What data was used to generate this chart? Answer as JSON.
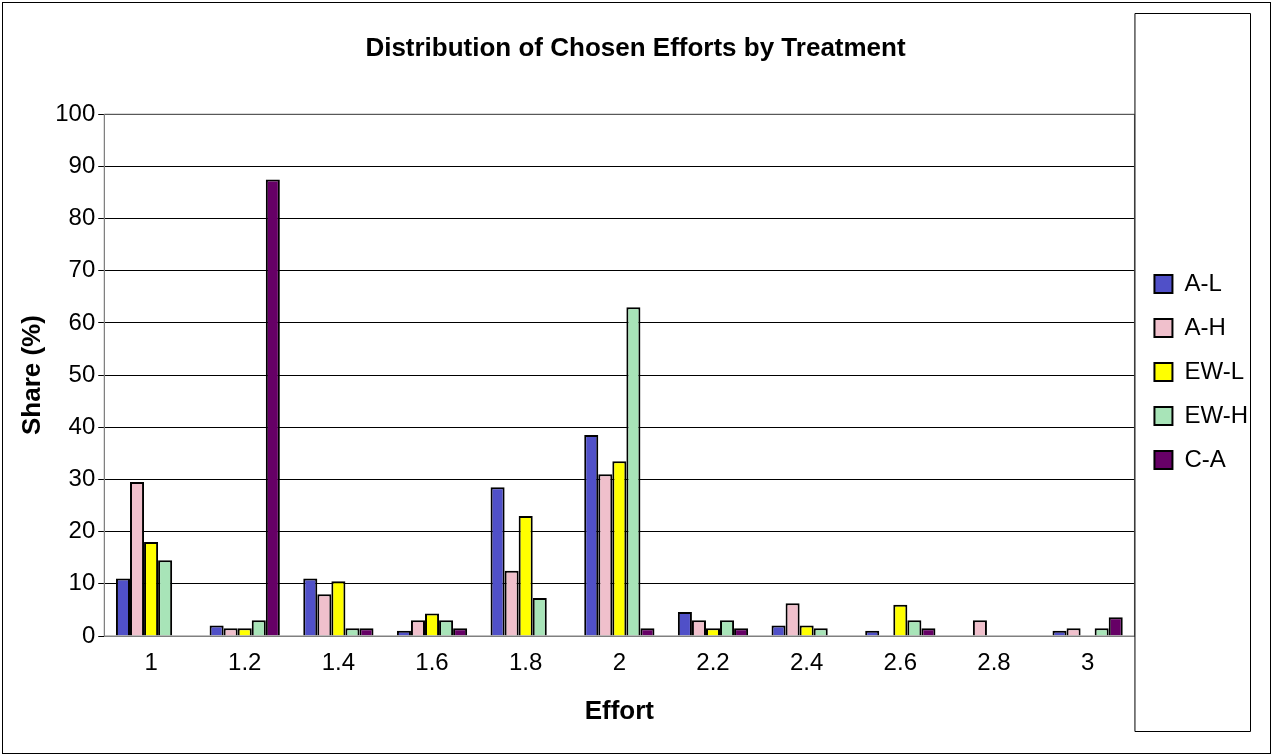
{
  "chart_data": {
    "type": "bar",
    "title": "Distribution of Chosen Efforts by Treatment",
    "xlabel": "Effort",
    "ylabel": "Share (%)",
    "categories": [
      "1",
      "1.2",
      "1.4",
      "1.6",
      "1.8",
      "2",
      "2.2",
      "2.4",
      "2.6",
      "2.8",
      "3"
    ],
    "series": [
      {
        "name": "A-L",
        "color": "#5050c8",
        "values": [
          11,
          2,
          11,
          1,
          28.5,
          38.5,
          4.6,
          2,
          1,
          0,
          1
        ]
      },
      {
        "name": "A-H",
        "color": "#f0c0cc",
        "values": [
          29.5,
          1.5,
          8,
          3,
          12.5,
          31,
          3,
          6.3,
          0,
          3,
          1.5
        ]
      },
      {
        "name": "EW-L",
        "color": "#ffff00",
        "values": [
          18,
          1.5,
          10.5,
          4.3,
          23,
          33.5,
          1.5,
          2,
          6,
          0,
          0
        ]
      },
      {
        "name": "EW-H",
        "color": "#a8e4b8",
        "values": [
          14.5,
          3,
          1.5,
          3,
          7.3,
          63,
          3,
          1.5,
          3,
          0,
          1.5
        ]
      },
      {
        "name": "C-A",
        "color": "#660066",
        "values": [
          0,
          87.5,
          1.5,
          1.5,
          0,
          1.5,
          1.5,
          0,
          1.5,
          0,
          3.6
        ]
      }
    ],
    "ylim": [
      0,
      100
    ],
    "yticks": [
      0,
      10,
      20,
      30,
      40,
      50,
      60,
      70,
      80,
      90,
      100
    ],
    "grid": "y",
    "legend": "right"
  }
}
